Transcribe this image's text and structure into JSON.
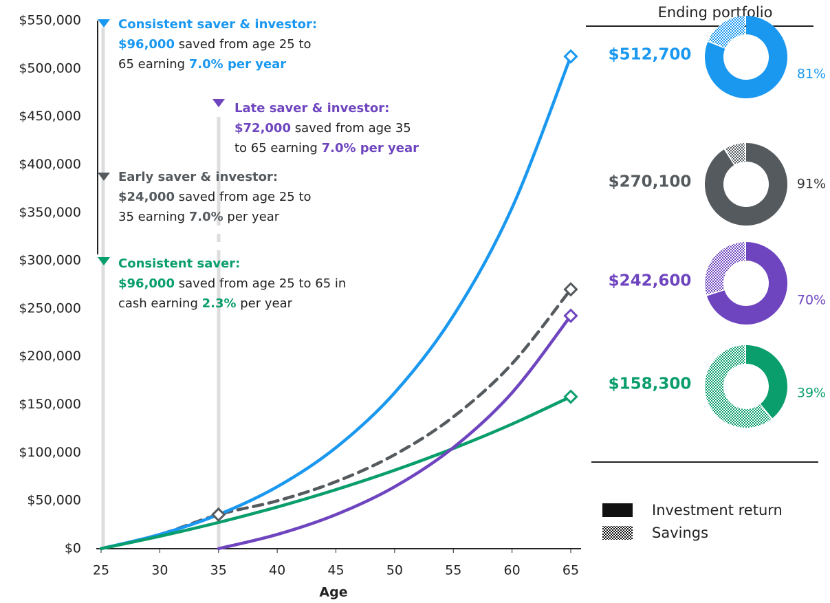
{
  "chart_data": {
    "type": "line",
    "x_label": "Age",
    "x": [
      25,
      30,
      35,
      40,
      45,
      50,
      55,
      60,
      65
    ],
    "xlim": [
      25,
      65
    ],
    "xticks": [
      25,
      30,
      35,
      40,
      45,
      50,
      55,
      60,
      65
    ],
    "ylim": [
      0,
      550000
    ],
    "yticks": [
      {
        "value": 0,
        "label": "$0"
      },
      {
        "value": 50000,
        "label": "$50,000"
      },
      {
        "value": 100000,
        "label": "$100,000"
      },
      {
        "value": 150000,
        "label": "$150,000"
      },
      {
        "value": 200000,
        "label": "$200,000"
      },
      {
        "value": 250000,
        "label": "$250,000"
      },
      {
        "value": 300000,
        "label": "$300,000"
      },
      {
        "value": 350000,
        "label": "$350,000"
      },
      {
        "value": 400000,
        "label": "$400,000"
      },
      {
        "value": 450000,
        "label": "$450,000"
      },
      {
        "value": 500000,
        "label": "$500,000"
      },
      {
        "value": 550000,
        "label": "$550,000"
      }
    ],
    "series": [
      {
        "name": "Consistent saver & investor:",
        "color": "#1a98f0",
        "values": [
          0,
          14800,
          35500,
          64500,
          105300,
          162400,
          242600,
          355000,
          512700
        ],
        "note": [
          [
            {
              "text": "$96,000",
              "hl": true
            },
            {
              "text": " saved from age 25 to"
            }
          ],
          [
            {
              "text": "65 earning "
            },
            {
              "text": "7.0% per year",
              "hl": true
            }
          ]
        ],
        "ending_value": 512700,
        "ending_label": "$512,700",
        "return_share": 81,
        "return_share_label": "81%"
      },
      {
        "name": "Early saver & investor:",
        "color": "#555a5e",
        "dashed": true,
        "values": [
          0,
          14800,
          35500,
          49800,
          69800,
          97900,
          137300,
          192600,
          270100
        ],
        "note": [
          [
            {
              "text": "$24,000",
              "hl": true
            },
            {
              "text": " saved from age 25 to"
            }
          ],
          [
            {
              "text": "35 earning "
            },
            {
              "text": "7.0%",
              "hl": true
            },
            {
              "text": " per year"
            }
          ]
        ],
        "ending_value": 270100,
        "ending_label": "$270,100",
        "return_share": 91,
        "return_share_label": "91%"
      },
      {
        "name": "Late saver & investor:",
        "color": "#6e45bf",
        "values": [
          null,
          null,
          0,
          14800,
          35500,
          64500,
          105300,
          162400,
          242600
        ],
        "note": [
          [
            {
              "text": "$72,000",
              "hl": true
            },
            {
              "text": " saved from age 35"
            }
          ],
          [
            {
              "text": "to 65 earning "
            },
            {
              "text": "7.0% per year",
              "hl": true
            }
          ]
        ],
        "ending_value": 242600,
        "ending_label": "$242,600",
        "return_share": 70,
        "return_share_label": "70%"
      },
      {
        "name": "Consistent saver:",
        "color": "#0a9e6c",
        "values": [
          0,
          12900,
          27300,
          43400,
          61500,
          81700,
          104400,
          129800,
          158300
        ],
        "note": [
          [
            {
              "text": "$96,000",
              "hl": true
            },
            {
              "text": " saved from age 25 to 65 in"
            }
          ],
          [
            {
              "text": "cash earning "
            },
            {
              "text": "2.3%",
              "hl": true
            },
            {
              "text": " per year"
            }
          ]
        ],
        "ending_value": 158300,
        "ending_label": "$158,300",
        "return_share": 39,
        "return_share_label": "39%"
      }
    ],
    "panel_title": "Ending portfolio",
    "legend": [
      "Investment return",
      "Savings"
    ]
  }
}
